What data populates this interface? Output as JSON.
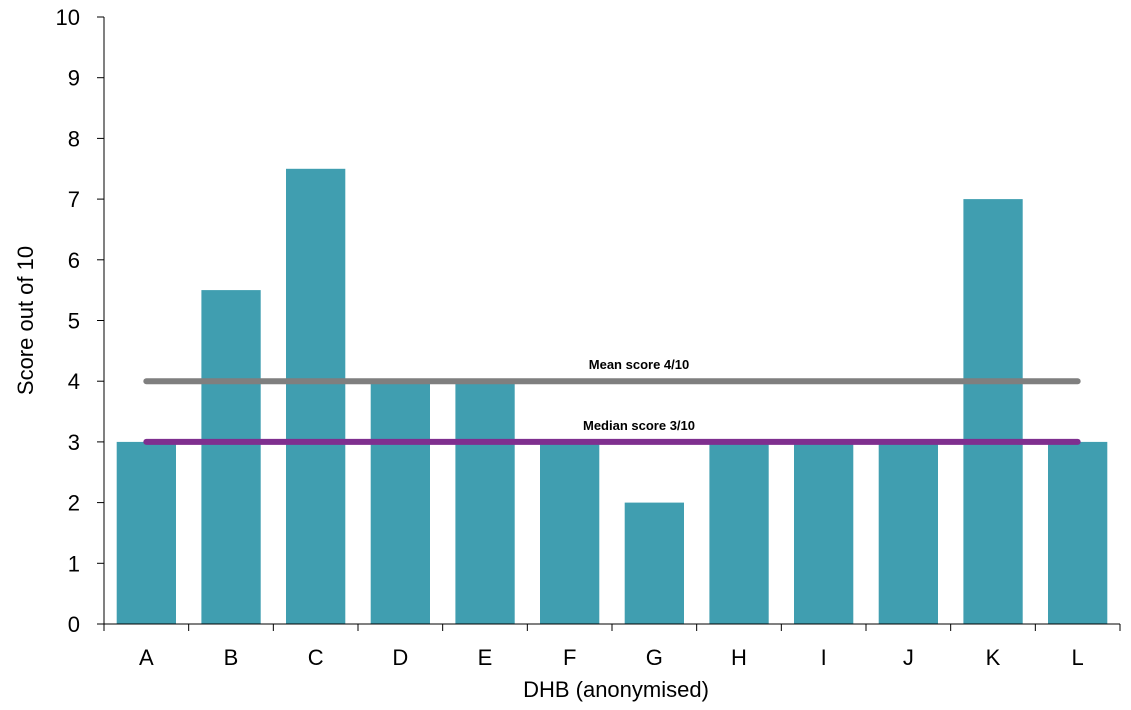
{
  "chart_data": {
    "type": "bar",
    "title": "",
    "xlabel": "DHB (anonymised)",
    "ylabel": "Score out of 10",
    "categories": [
      "A",
      "B",
      "C",
      "D",
      "E",
      "F",
      "G",
      "H",
      "I",
      "J",
      "K",
      "L"
    ],
    "values": [
      3,
      5.5,
      7.5,
      4,
      4,
      3,
      2,
      3,
      3,
      3,
      7,
      3
    ],
    "ylim": [
      0,
      10
    ],
    "yticks": [
      "0",
      "1",
      "2",
      "3",
      "4",
      "5",
      "6",
      "7",
      "8",
      "9",
      "10"
    ],
    "grid": false,
    "legend": "none",
    "reference_lines": [
      {
        "label": "Mean score 4/10",
        "value": 4,
        "color": "#7f7f7f"
      },
      {
        "label": "Median score  3/10",
        "value": 3,
        "color": "#7f2f8f"
      }
    ]
  },
  "colors": {
    "bar": "#409eb0",
    "axis": "#000000"
  }
}
